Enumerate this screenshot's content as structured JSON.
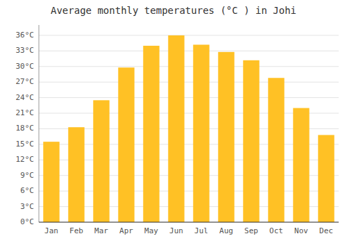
{
  "chart_data": {
    "type": "bar",
    "title": "Average monthly temperatures (°C ) in Johi",
    "categories": [
      "Jan",
      "Feb",
      "Mar",
      "Apr",
      "May",
      "Jun",
      "Jul",
      "Aug",
      "Sep",
      "Oct",
      "Nov",
      "Dec"
    ],
    "values": [
      15.5,
      18.3,
      23.5,
      29.8,
      34.0,
      36.0,
      34.2,
      32.8,
      31.2,
      27.8,
      22.0,
      16.8
    ],
    "color": "#FFC125",
    "ylim": [
      0,
      38
    ],
    "yticks": [
      {
        "value": 0,
        "label": "0°C"
      },
      {
        "value": 3,
        "label": "3°C"
      },
      {
        "value": 6,
        "label": "6°C"
      },
      {
        "value": 9,
        "label": "9°C"
      },
      {
        "value": 12,
        "label": "12°C"
      },
      {
        "value": 15,
        "label": "15°C"
      },
      {
        "value": 18,
        "label": "18°C"
      },
      {
        "value": 21,
        "label": "21°C"
      },
      {
        "value": 24,
        "label": "24°C"
      },
      {
        "value": 27,
        "label": "27°C"
      },
      {
        "value": 30,
        "label": "30°C"
      },
      {
        "value": 33,
        "label": "33°C"
      },
      {
        "value": 36,
        "label": "36°C"
      }
    ],
    "grid": true
  }
}
